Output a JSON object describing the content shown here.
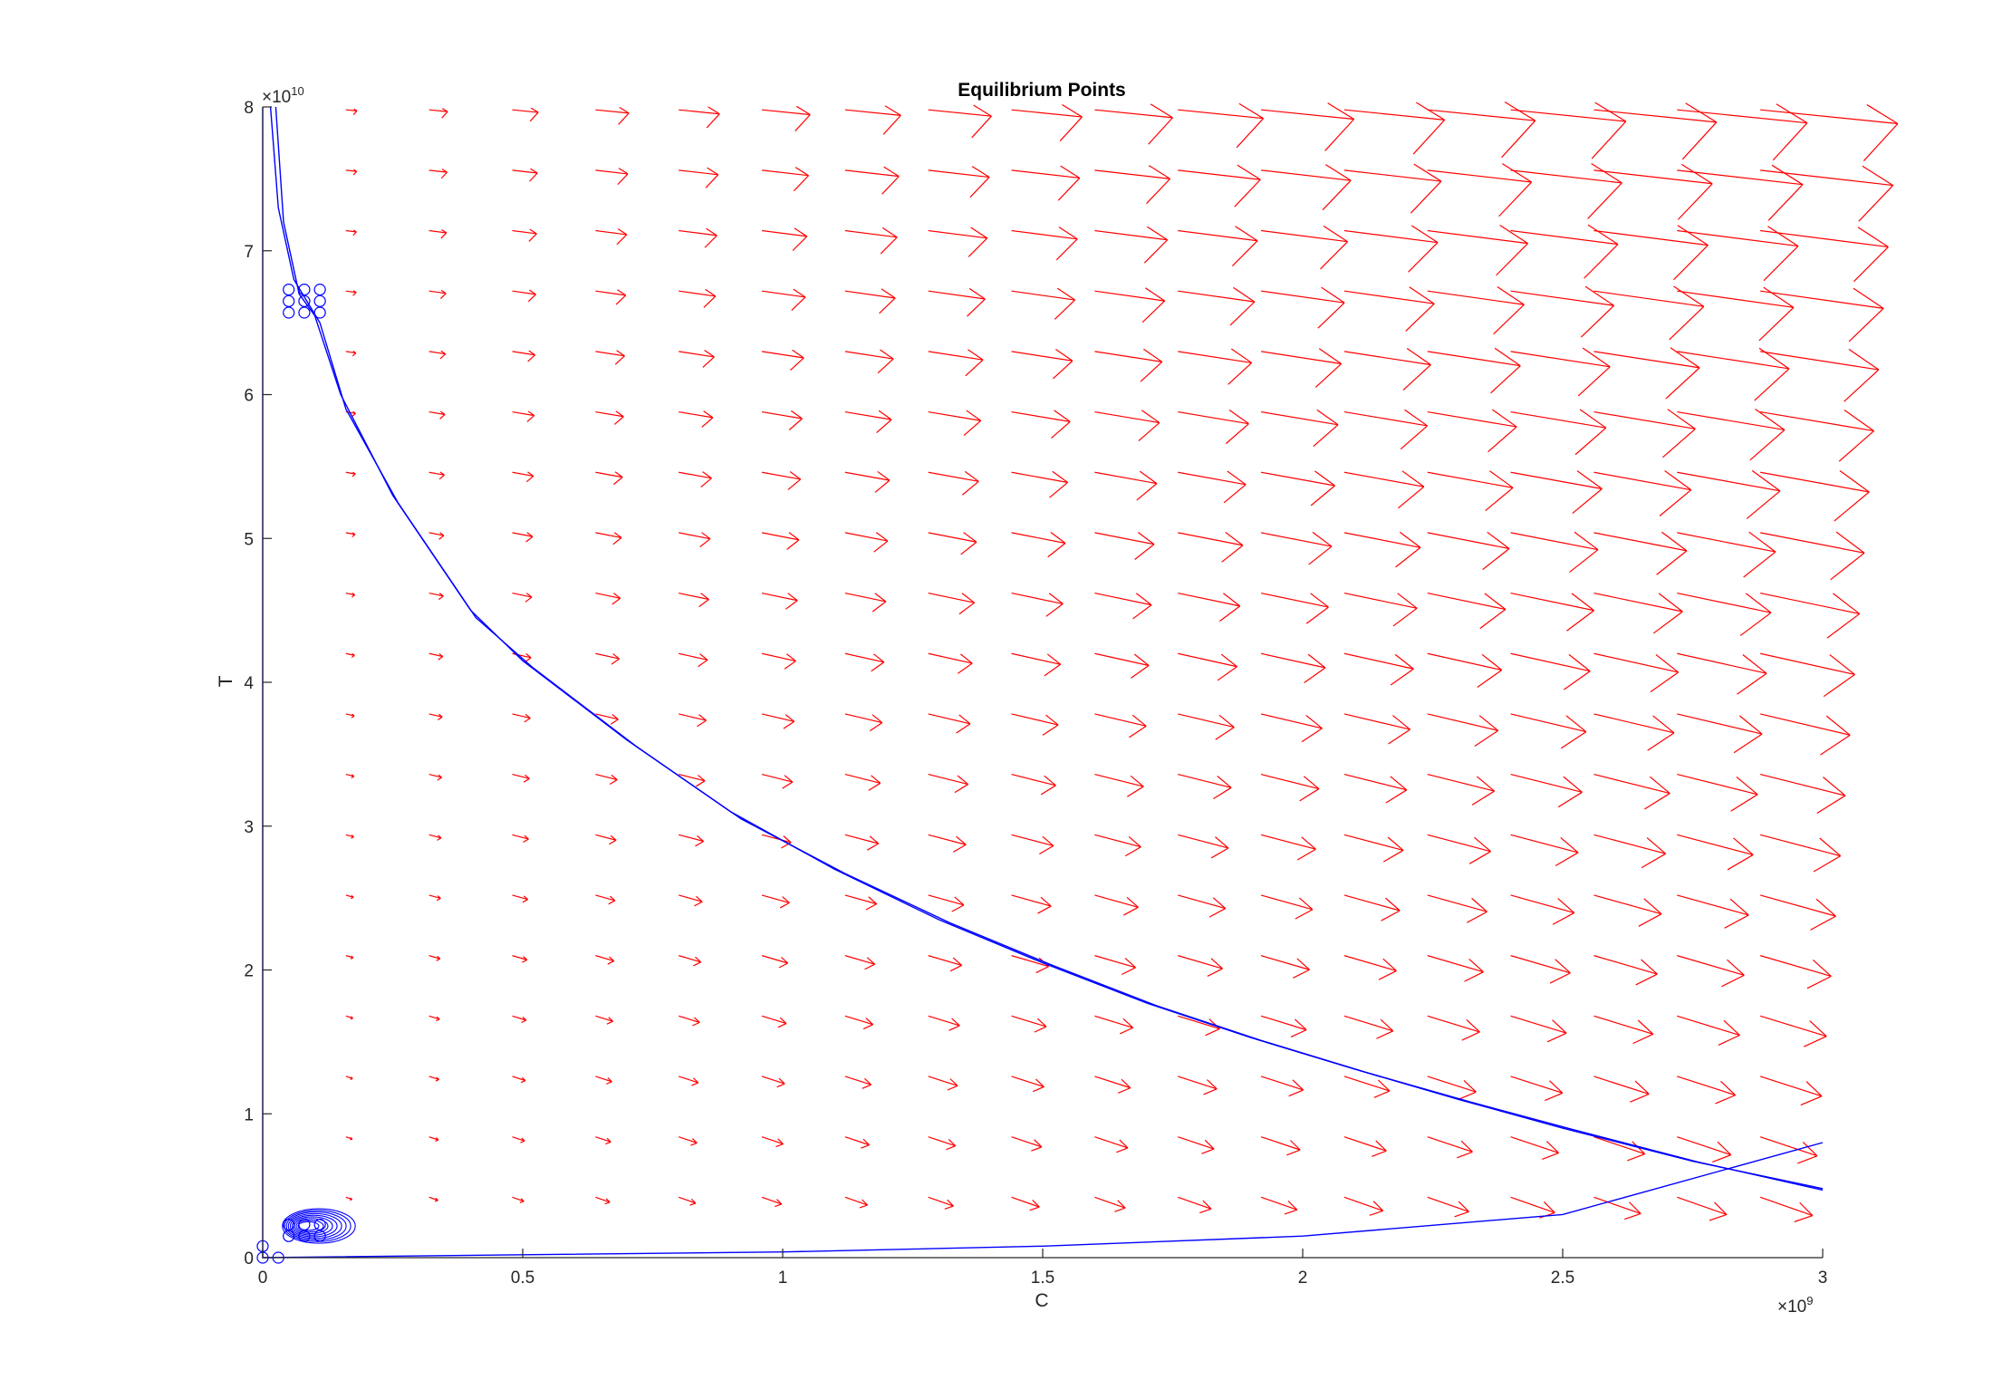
{
  "colors": {
    "background": "#ffffff",
    "axis": "#262626",
    "quiver": "#ff0000",
    "trajectory": "#0000ff"
  },
  "chart_data": {
    "type": "quiver-phase-portrait",
    "title": "Equilibrium Points",
    "xlabel": "C",
    "ylabel": "T",
    "xlim": [
      0,
      3000000000
    ],
    "ylim": [
      0,
      80000000000
    ],
    "x_exponent_label": "×10",
    "x_exponent": "9",
    "y_exponent_label": "×10",
    "y_exponent": "10",
    "x_ticks": [
      0,
      0.5,
      1,
      1.5,
      2,
      2.5,
      3
    ],
    "x_tick_labels": [
      "0",
      "0.5",
      "1",
      "1.5",
      "2",
      "2.5",
      "3"
    ],
    "y_ticks": [
      0,
      1,
      2,
      3,
      4,
      5,
      6,
      7,
      8
    ],
    "y_tick_labels": [
      "0",
      "1",
      "2",
      "3",
      "4",
      "5",
      "6",
      "7",
      "8"
    ],
    "grid": false,
    "box": false,
    "quiver_field": {
      "color": "#ff0000",
      "x_start": 160000000,
      "x_step": 160000000,
      "x_count": 19,
      "y_start": 4200000000,
      "y_step": 4200000000,
      "y_count": 19,
      "note_values_in_data_units": true
    },
    "trajectories": [
      {
        "color": "#0000ff",
        "points": [
          [
            25000000,
            80000000000
          ],
          [
            40000000,
            72000000000
          ],
          [
            70000000,
            67000000000
          ],
          [
            100000000,
            65500000000
          ],
          [
            150000000,
            60000000000
          ],
          [
            250000000,
            53000000000
          ],
          [
            400000000,
            45000000000
          ],
          [
            500000000,
            41500000000
          ],
          [
            700000000,
            36000000000
          ],
          [
            900000000,
            31000000000
          ],
          [
            1100000000,
            27000000000
          ],
          [
            1300000000,
            23500000000
          ],
          [
            1500000000,
            20500000000
          ],
          [
            1700000000,
            17700000000
          ],
          [
            1900000000,
            15300000000
          ],
          [
            2100000000,
            13100000000
          ],
          [
            2300000000,
            11000000000
          ],
          [
            2500000000,
            9000000000
          ],
          [
            2750000000,
            6700000000
          ],
          [
            3000000000,
            4800000000
          ]
        ]
      },
      {
        "color": "#0000ff",
        "points": [
          [
            15000000,
            80000000000
          ],
          [
            30000000,
            73000000000
          ],
          [
            60000000,
            68000000000
          ],
          [
            110000000,
            65000000000
          ],
          [
            160000000,
            59000000000
          ],
          [
            260000000,
            52500000000
          ],
          [
            410000000,
            44500000000
          ],
          [
            520000000,
            41000000000
          ],
          [
            720000000,
            35500000000
          ],
          [
            920000000,
            30500000000
          ],
          [
            1120000000,
            26700000000
          ],
          [
            1320000000,
            23300000000
          ],
          [
            1520000000,
            20300000000
          ],
          [
            1720000000,
            17500000000
          ],
          [
            1920000000,
            15100000000
          ],
          [
            2120000000,
            12900000000
          ],
          [
            2320000000,
            10850000000
          ],
          [
            2520000000,
            8900000000
          ],
          [
            2760000000,
            6650000000
          ],
          [
            3000000000,
            4700000000
          ]
        ]
      },
      {
        "color": "#0000ff",
        "points": [
          [
            0,
            80000000000
          ],
          [
            0,
            40000000000
          ],
          [
            0,
            0
          ],
          [
            500000000,
            200000000
          ],
          [
            1000000000,
            400000000
          ],
          [
            1500000000,
            800000000
          ],
          [
            2000000000,
            1500000000
          ],
          [
            2500000000,
            3000000000
          ],
          [
            3000000000,
            8000000000
          ]
        ]
      }
    ],
    "limit_cycle": {
      "color": "#0000ff",
      "center": [
        80000000,
        2200000000
      ],
      "rx": [
        20000000,
        70000000
      ],
      "ry": [
        300000000,
        1200000000
      ],
      "loops": 9
    },
    "equilibrium_markers": {
      "color": "#0000ff",
      "points": [
        [
          50000000,
          67300000000
        ],
        [
          80000000,
          67300000000
        ],
        [
          110000000,
          67300000000
        ],
        [
          50000000,
          66500000000
        ],
        [
          80000000,
          66500000000
        ],
        [
          110000000,
          66500000000
        ],
        [
          50000000,
          65700000000
        ],
        [
          80000000,
          65700000000
        ],
        [
          110000000,
          65700000000
        ],
        [
          50000000,
          2300000000
        ],
        [
          80000000,
          2300000000
        ],
        [
          110000000,
          2300000000
        ],
        [
          50000000,
          1500000000
        ],
        [
          80000000,
          1500000000
        ],
        [
          110000000,
          1500000000
        ],
        [
          0,
          800000000
        ],
        [
          0,
          0
        ],
        [
          30000000,
          0
        ]
      ]
    }
  }
}
